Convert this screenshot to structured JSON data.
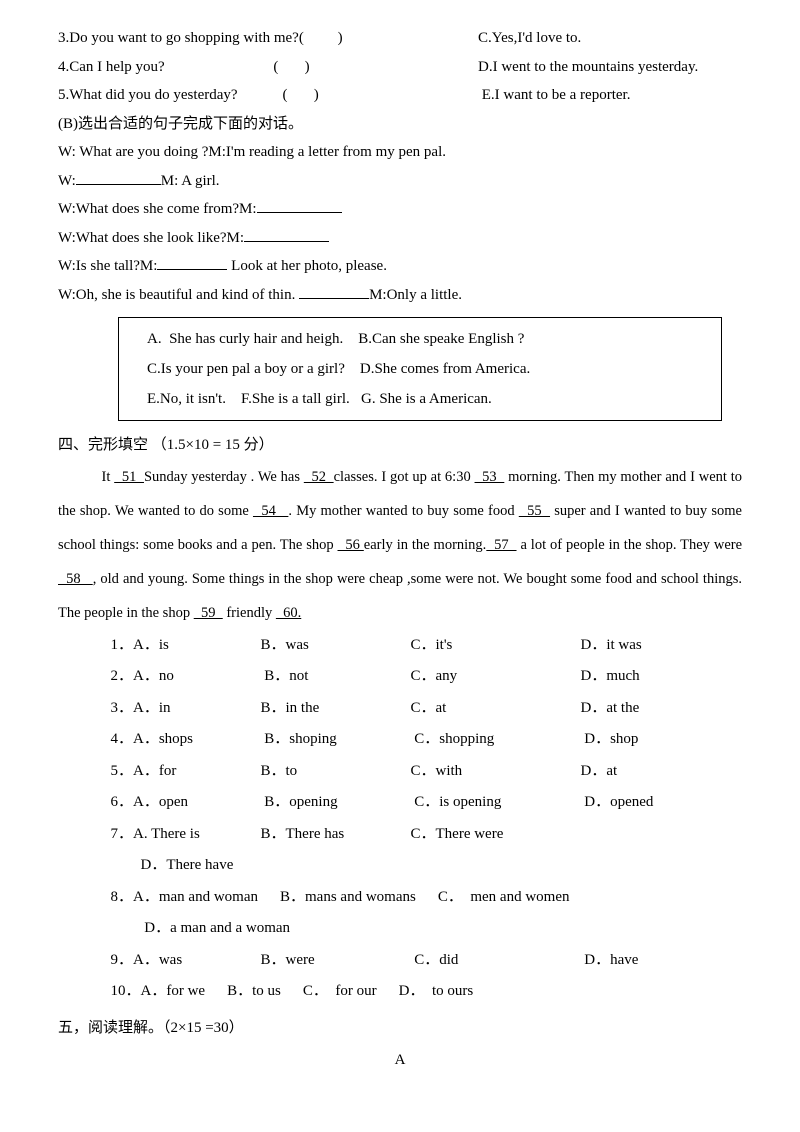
{
  "matching": [
    {
      "num": "3",
      "q": "Do you want to go shopping with me?",
      "paren": "(         )",
      "ans": "C.Yes,I'd love to."
    },
    {
      "num": "4",
      "q": "Can I help you?",
      "paren": "(       )",
      "ans": "D.I went to the mountains yesterday."
    },
    {
      "num": "5",
      "q": "What did you do yesterday?",
      "paren": "(       )",
      "ans": " E.I want to be a reporter."
    }
  ],
  "sectionB_title": "  (B)选出合适的句子完成下面的对话。",
  "dialog": {
    "l1": "W: What are you doing ?M:I'm reading a letter from my pen pal.",
    "l2_pre": "W:",
    "l2_post": "M: A girl.",
    "l3_pre": "W:What does she come from?M:",
    "l4_pre": "W:What does she look like?M:",
    "l5_pre": "W:Is she tall?M:",
    "l5_post": " Look at her photo, please.",
    "l6_pre": "W:Oh, she is beautiful and kind of thin. ",
    "l6_post": "M:Only a little."
  },
  "box": {
    "l1": "A.  She has curly hair and heigh.    B.Can she speake English ?",
    "l2": "C.Is your pen pal a boy or a girl?    D.She comes from America.",
    "l3": "E.No, it isn't.    F.She is a tall girl.   G. She is a American."
  },
  "sec4_title": "四、完形填空  （1.5×10 = 15 分）",
  "cloze": {
    "p1": "It ",
    "b51": "  51  ",
    "p2": "Sunday yesterday . We has ",
    "b52": "  52  ",
    "p3": "classes. I got up at 6:30 ",
    "b53": "  53  ",
    "p4": " morning. Then my mother and I went to the shop. We wanted to do some   ",
    "b54": "  54   ",
    "p5": ". My mother wanted to buy some food ",
    "b55": "  55  ",
    "p6": " super and I wanted to buy some school things: some books and a pen. The shop ",
    "b56": "  56 ",
    "p7": "early in the morning.",
    "b57": "  57  ",
    "p8": " a lot of people in the shop. They were ",
    "b58": "  58   ",
    "p9": ", old and young. Some things in the shop were cheap ,some were not. We bought some food and school things. The people in the shop ",
    "b59": "  59  ",
    "p10": " friendly ",
    "b60": "  60.",
    "p11": ""
  },
  "choices": [
    {
      "n": "1",
      "a": "A．is",
      "b": "B．was",
      "c": "C．it's",
      "d": "D．it was"
    },
    {
      "n": "2",
      "a": "A．no",
      "b": " B．not",
      "c": "C．any",
      "d": "D．much"
    },
    {
      "n": "3",
      "a": "A．in",
      "b": "B．in the",
      "c": "C．at",
      "d": "D．at the"
    },
    {
      "n": "4",
      "a": "A．shops",
      "b": " B．shoping",
      "c": " C．shopping",
      "d": " D．shop"
    },
    {
      "n": "5",
      "a": "A．for",
      "b": "B．to",
      "c": "C．with",
      "d": "D．at"
    },
    {
      "n": "6",
      "a": "A．open",
      "b": " B．opening",
      "c": " C．is opening",
      "d": " D．opened"
    },
    {
      "n": "7",
      "a": "A. There is",
      "b": "B．There has",
      "c": "C．There were",
      "d": "D．There have"
    },
    {
      "n": "8",
      "a": "A．man and woman",
      "b": "B．mans and womans",
      "c": "C．  men and women",
      "d": " D．a man and a woman"
    },
    {
      "n": "9",
      "a": "A．was",
      "b": "B．were",
      "c": " C．did",
      "d": " D．have"
    },
    {
      "n": "10",
      "a": "A．for we",
      "b": "B．to us",
      "c": "C．  for our",
      "d": "D．  to ours"
    }
  ],
  "sec5_title": "五，阅读理解。（2×15 =30）",
  "center_a": "A"
}
